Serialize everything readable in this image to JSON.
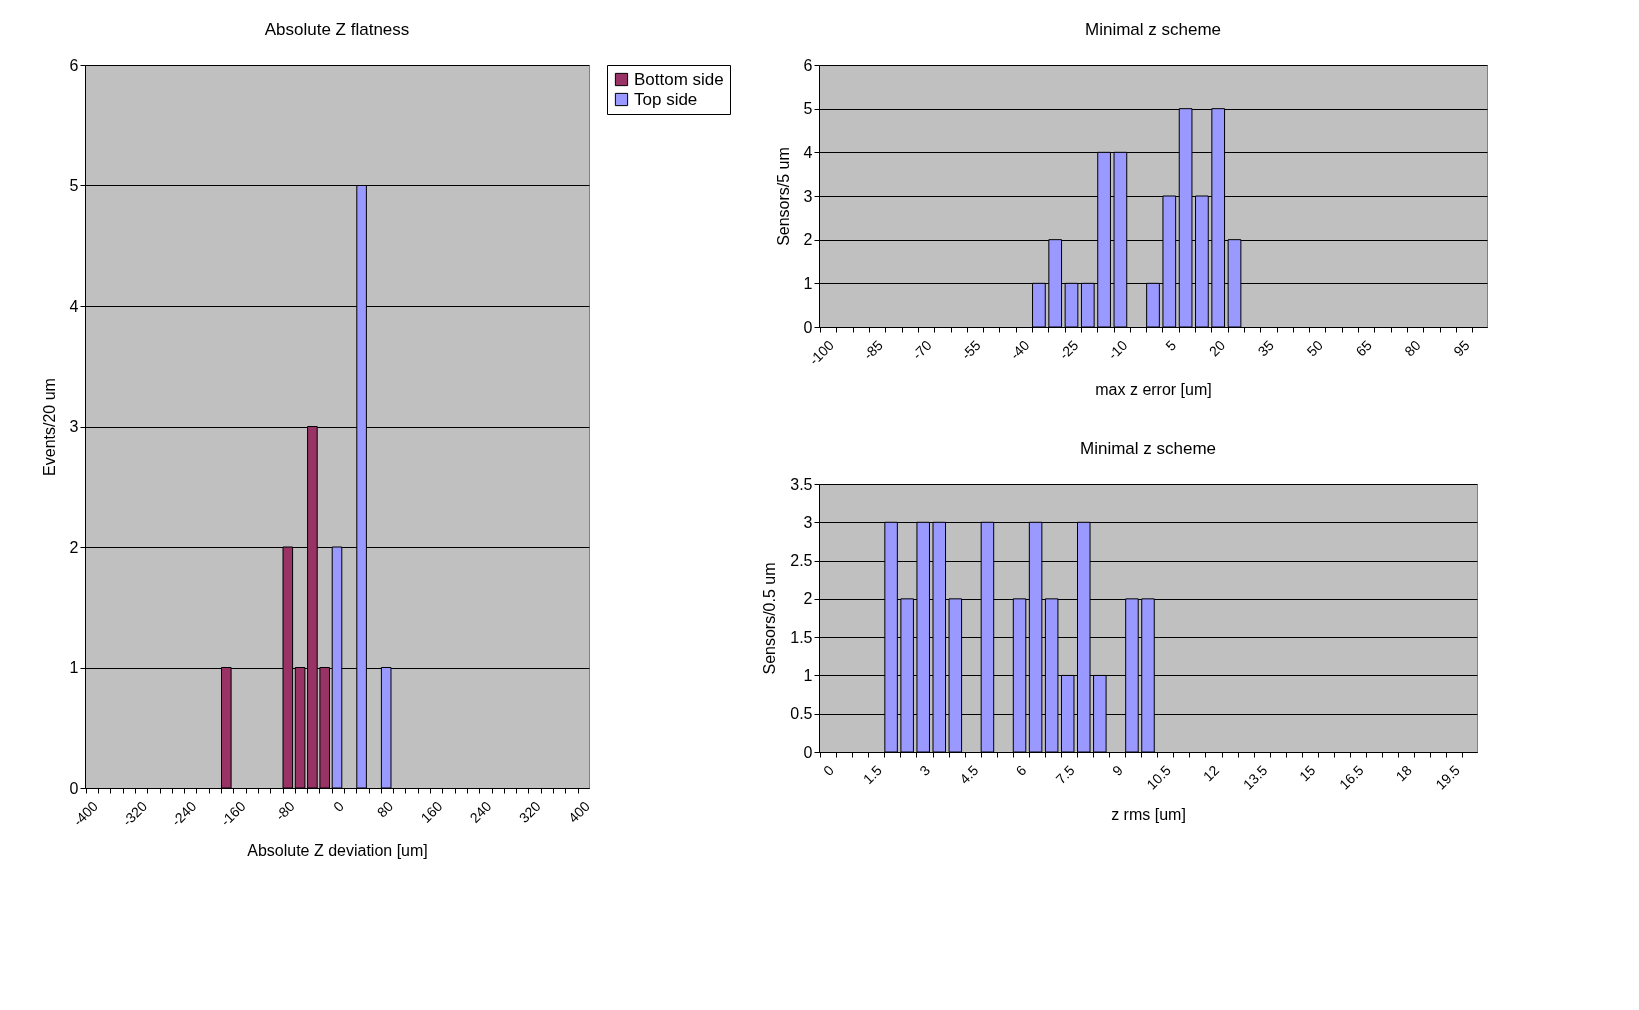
{
  "chart_data": [
    {
      "type": "bar",
      "title": "Absolute Z flatness",
      "xlabel": "Absolute Z deviation [um]",
      "ylabel": "Events/20 um",
      "categories": [
        "-400",
        null,
        null,
        null,
        "-320",
        null,
        null,
        null,
        "-240",
        null,
        null,
        null,
        "-160",
        null,
        null,
        null,
        "-80",
        null,
        null,
        null,
        "0",
        null,
        null,
        null,
        "80",
        null,
        null,
        null,
        "160",
        null,
        null,
        null,
        "240",
        null,
        null,
        null,
        "320",
        null,
        null,
        null,
        "400"
      ],
      "series": [
        {
          "name": "Bottom side",
          "color": "#993366",
          "values": [
            null,
            null,
            null,
            null,
            null,
            null,
            null,
            null,
            null,
            null,
            null,
            1,
            null,
            null,
            null,
            null,
            2,
            1,
            3,
            1,
            null,
            null,
            null,
            null,
            null,
            null,
            null,
            null,
            null,
            null,
            null,
            null,
            null,
            null,
            null,
            null,
            null,
            null,
            null,
            null,
            null
          ]
        },
        {
          "name": "Top side",
          "color": "#9999ff",
          "values": [
            null,
            null,
            null,
            null,
            null,
            null,
            null,
            null,
            null,
            null,
            null,
            null,
            null,
            null,
            null,
            null,
            null,
            null,
            null,
            null,
            2,
            null,
            5,
            null,
            1,
            null,
            null,
            null,
            null,
            null,
            null,
            null,
            null,
            null,
            null,
            null,
            null,
            null,
            null,
            null,
            null
          ]
        }
      ],
      "ylim": [
        0,
        6
      ],
      "yticks": [
        0,
        1,
        2,
        3,
        4,
        5,
        6
      ],
      "grid": "y",
      "legend": "right"
    },
    {
      "type": "bar",
      "title": "Minimal z scheme",
      "xlabel": "max z error [um]",
      "ylabel": "Sensors/5 um",
      "categories": [
        "-100",
        null,
        null,
        "-85",
        null,
        null,
        "-70",
        null,
        null,
        "-55",
        null,
        null,
        "-40",
        null,
        null,
        "-25",
        null,
        null,
        "-10",
        null,
        null,
        "5",
        null,
        null,
        "20",
        null,
        null,
        "35",
        null,
        null,
        "50",
        null,
        null,
        "65",
        null,
        null,
        "80",
        null,
        null,
        "95",
        null
      ],
      "series": [
        {
          "color": "#9999ff",
          "values": [
            null,
            null,
            null,
            null,
            null,
            null,
            null,
            null,
            null,
            null,
            null,
            null,
            null,
            1,
            2,
            1,
            1,
            4,
            4,
            null,
            1,
            3,
            5,
            3,
            5,
            2,
            null,
            null,
            null,
            null,
            null,
            null,
            null,
            null,
            null,
            null,
            null,
            null,
            null,
            null,
            null
          ]
        }
      ],
      "ylim": [
        0,
        6
      ],
      "yticks": [
        0,
        1,
        2,
        3,
        4,
        5,
        6
      ],
      "grid": "y"
    },
    {
      "type": "bar",
      "title": "Minimal z scheme",
      "xlabel": "z rms [um]",
      "ylabel": "Sensors/0.5 um",
      "categories": [
        "0",
        null,
        null,
        "1.5",
        null,
        null,
        "3",
        null,
        null,
        "4.5",
        null,
        null,
        "6",
        null,
        null,
        "7.5",
        null,
        null,
        "9",
        null,
        null,
        "10.5",
        null,
        null,
        "12",
        null,
        null,
        "13.5",
        null,
        null,
        "15",
        null,
        null,
        "16.5",
        null,
        null,
        "18",
        null,
        null,
        "19.5",
        null
      ],
      "series": [
        {
          "color": "#9999ff",
          "values": [
            null,
            null,
            null,
            null,
            3,
            2,
            3,
            3,
            2,
            null,
            3,
            null,
            2,
            3,
            2,
            1,
            3,
            1,
            null,
            2,
            2,
            null,
            null,
            null,
            null,
            null,
            null,
            null,
            null,
            null,
            null,
            null,
            null,
            null,
            null,
            null,
            null,
            null,
            null,
            null,
            null
          ]
        }
      ],
      "ylim": [
        0,
        3.5
      ],
      "yticks": [
        0,
        0.5,
        1,
        1.5,
        2,
        2.5,
        3,
        3.5
      ],
      "grid": "y"
    }
  ]
}
